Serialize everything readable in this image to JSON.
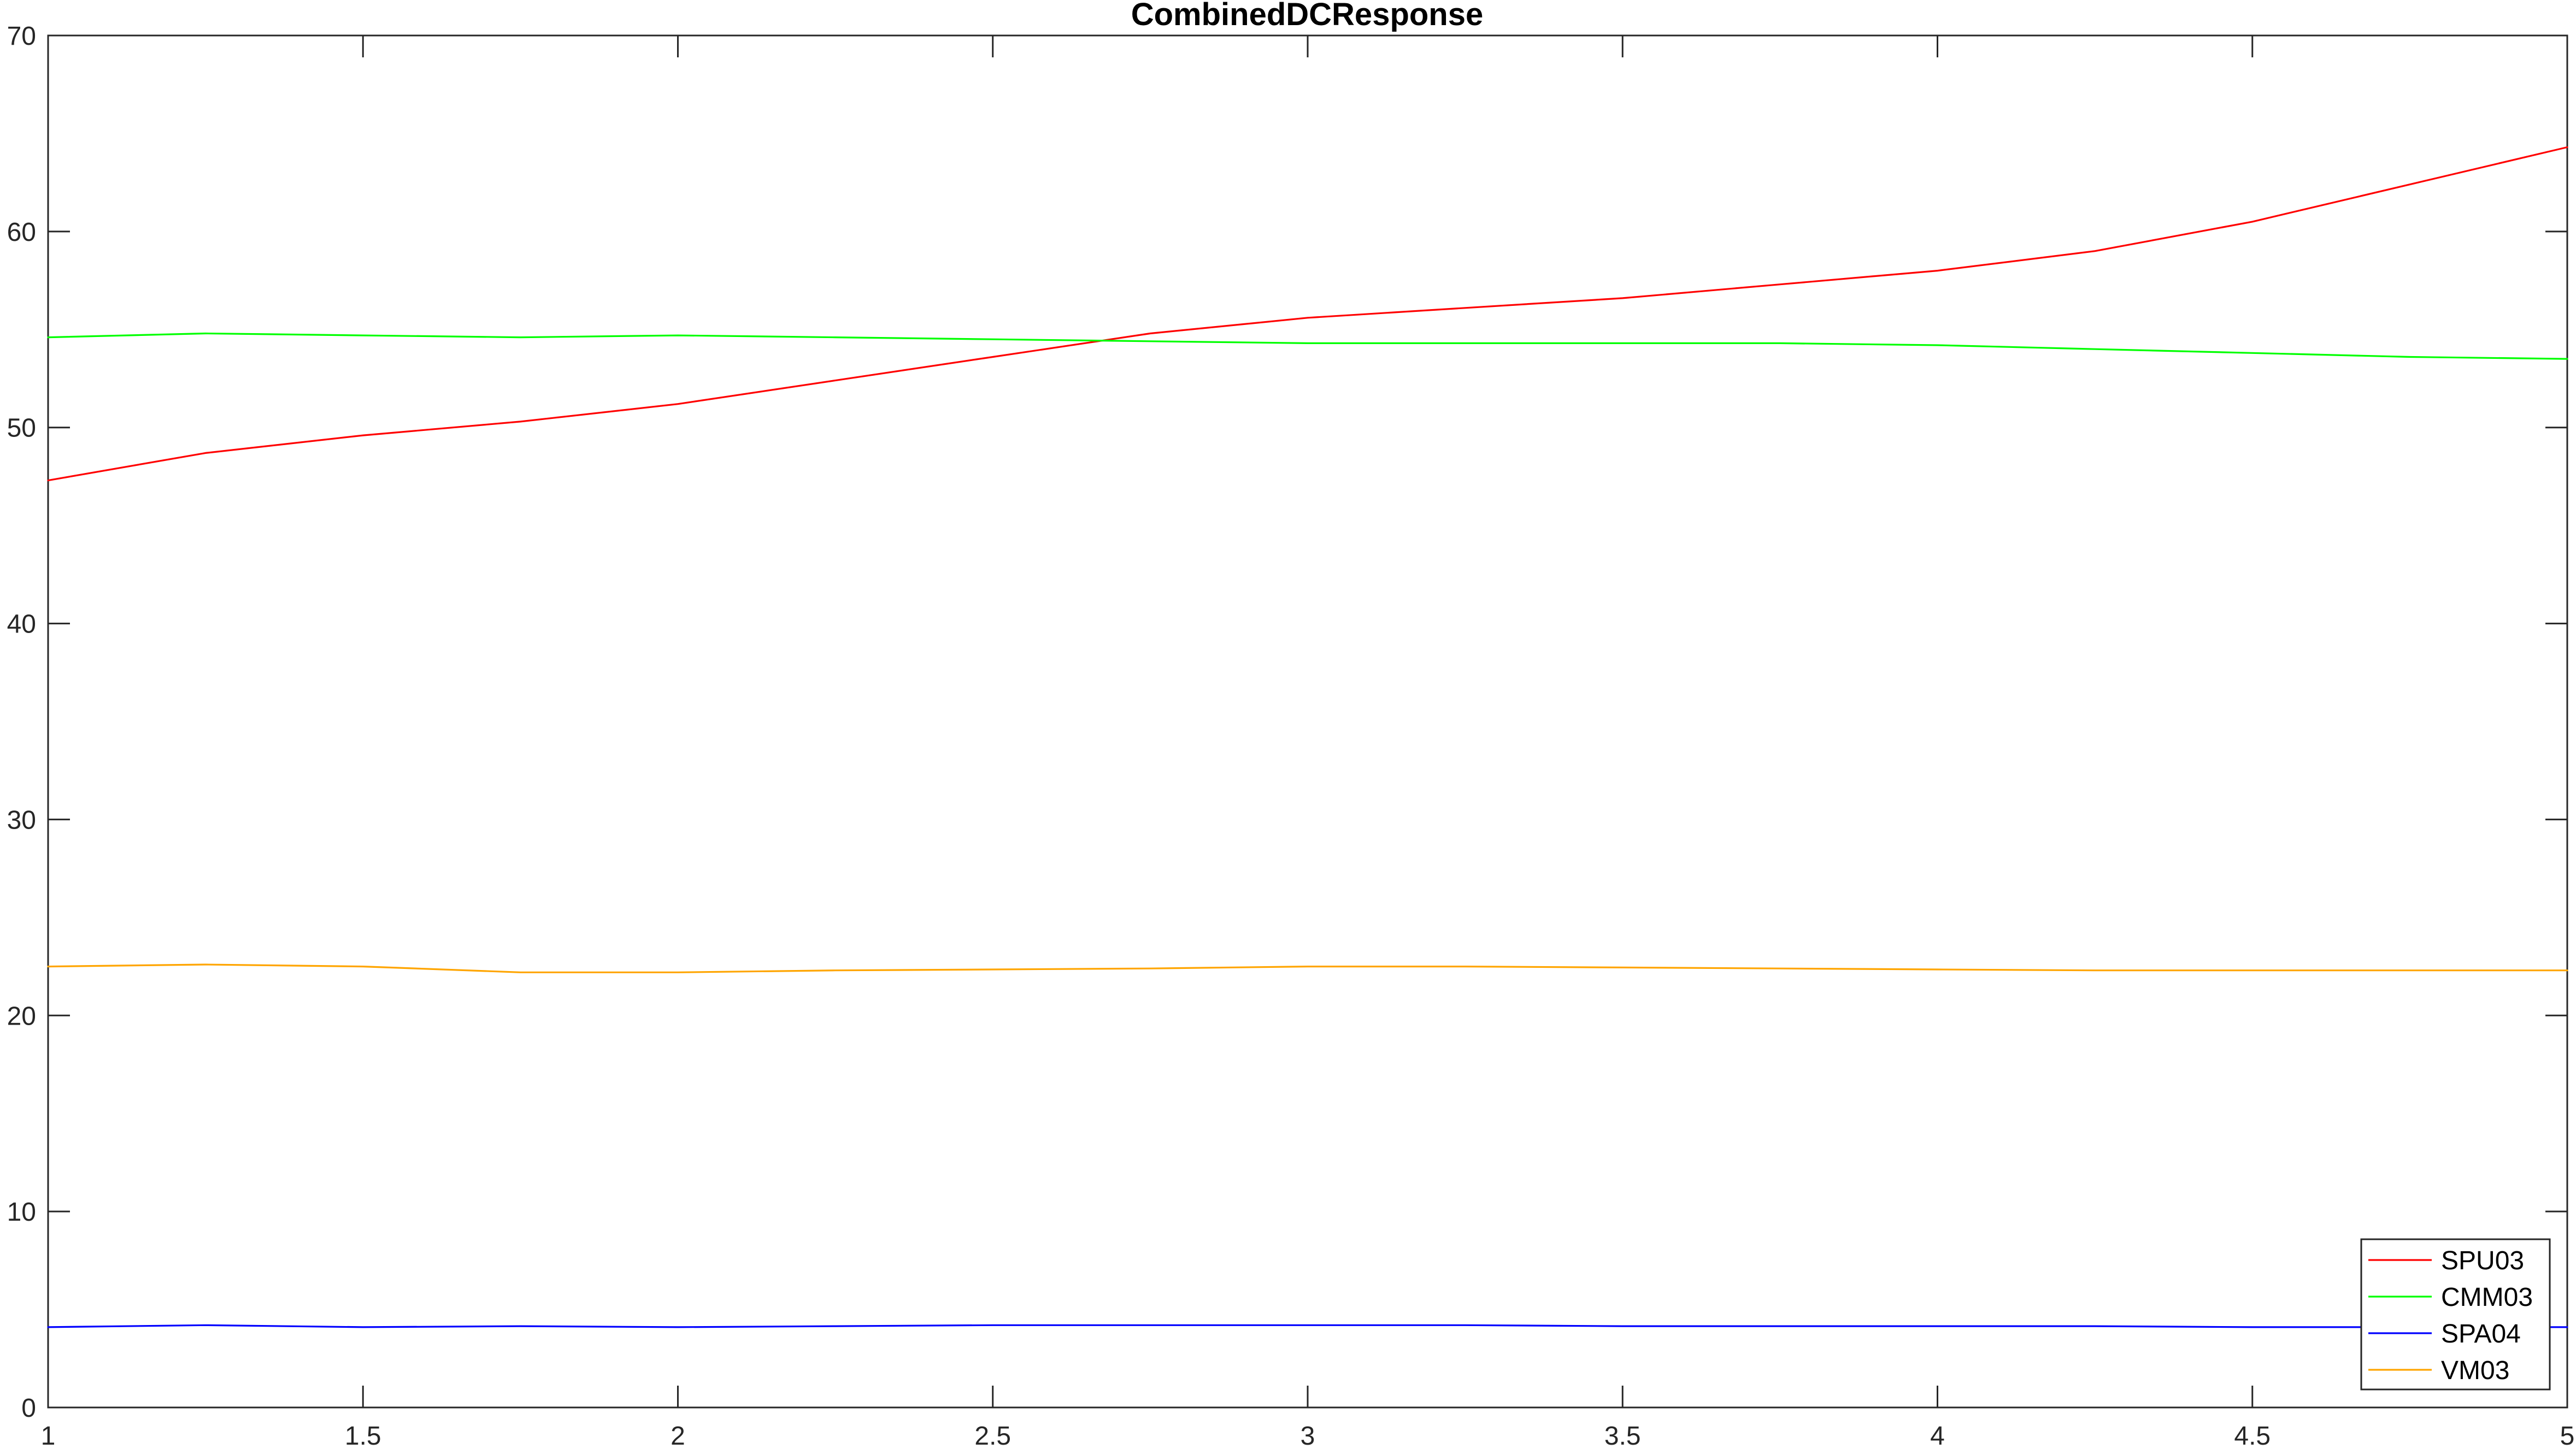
{
  "chart_data": {
    "type": "line",
    "title": "CombinedDCResponse",
    "xlabel": "",
    "ylabel": "",
    "xlim": [
      1,
      5
    ],
    "ylim": [
      0,
      70
    ],
    "xticks": [
      1,
      1.5,
      2,
      2.5,
      3,
      3.5,
      4,
      4.5,
      5
    ],
    "xtick_labels": [
      "1",
      "1.5",
      "2",
      "2.5",
      "3",
      "3.5",
      "4",
      "4.5",
      "5"
    ],
    "yticks": [
      0,
      10,
      20,
      30,
      40,
      50,
      60,
      70
    ],
    "ytick_labels": [
      "0",
      "10",
      "20",
      "30",
      "40",
      "50",
      "60",
      "70"
    ],
    "grid": false,
    "legend_position": "bottom-right",
    "x": [
      1,
      1.25,
      1.5,
      1.75,
      2,
      2.25,
      2.5,
      2.75,
      3,
      3.25,
      3.5,
      3.75,
      4,
      4.25,
      4.5,
      4.75,
      5
    ],
    "series": [
      {
        "name": "SPU03",
        "color": "#ff0000",
        "values": [
          47.3,
          48.7,
          49.6,
          50.3,
          51.2,
          52.4,
          53.6,
          54.8,
          55.6,
          56.1,
          56.6,
          57.3,
          58.0,
          59.0,
          60.5,
          62.4,
          64.3
        ]
      },
      {
        "name": "CMM03",
        "color": "#00ff00",
        "values": [
          54.6,
          54.8,
          54.7,
          54.6,
          54.7,
          54.6,
          54.5,
          54.4,
          54.3,
          54.3,
          54.3,
          54.3,
          54.2,
          54.0,
          53.8,
          53.6,
          53.5
        ]
      },
      {
        "name": "SPA04",
        "color": "#0000ff",
        "values": [
          4.1,
          4.2,
          4.1,
          4.15,
          4.1,
          4.15,
          4.2,
          4.2,
          4.2,
          4.2,
          4.15,
          4.15,
          4.15,
          4.15,
          4.1,
          4.1,
          4.1
        ]
      },
      {
        "name": "VM03",
        "color": "#ffa500",
        "values": [
          22.5,
          22.6,
          22.5,
          22.2,
          22.2,
          22.3,
          22.35,
          22.4,
          22.5,
          22.5,
          22.45,
          22.4,
          22.35,
          22.3,
          22.3,
          22.3,
          22.3
        ]
      }
    ]
  }
}
